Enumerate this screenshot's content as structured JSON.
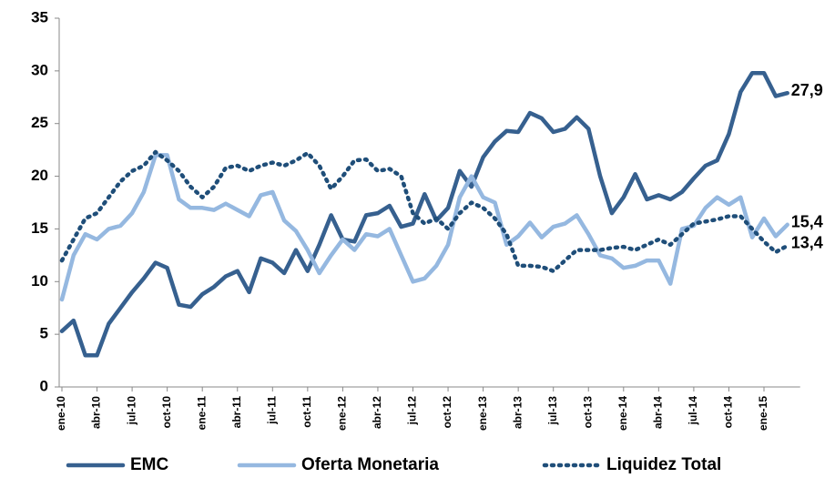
{
  "chart_data": {
    "type": "line",
    "categories": [
      "ene-10",
      null,
      null,
      "abr-10",
      null,
      null,
      "jul-10",
      null,
      null,
      "oct-10",
      null,
      null,
      "ene-11",
      null,
      null,
      "abr-11",
      null,
      null,
      "jul-11",
      null,
      null,
      "oct-11",
      null,
      null,
      "ene-12",
      null,
      null,
      "abr-12",
      null,
      null,
      "jul-12",
      null,
      null,
      "oct-12",
      null,
      null,
      "ene-13",
      null,
      null,
      "abr-13",
      null,
      null,
      "jul-13",
      null,
      null,
      "oct-13",
      null,
      null,
      "ene-14",
      null,
      null,
      "abr-14",
      null,
      null,
      "jul-14",
      null,
      null,
      "oct-14",
      null,
      null,
      "ene-15",
      null,
      null
    ],
    "series": [
      {
        "name": "EMC",
        "color": "#36608f",
        "dash": "solid",
        "values": [
          5.3,
          6.3,
          3.0,
          3.0,
          6.0,
          7.5,
          9.0,
          10.3,
          11.8,
          11.3,
          7.8,
          7.6,
          8.8,
          9.5,
          10.5,
          11.0,
          9.0,
          12.2,
          11.8,
          10.8,
          13.0,
          11.0,
          13.5,
          16.3,
          14.0,
          13.8,
          16.3,
          16.5,
          17.2,
          15.2,
          15.5,
          18.3,
          15.8,
          17.0,
          20.5,
          19.0,
          21.8,
          23.3,
          24.3,
          24.2,
          26.0,
          25.5,
          24.2,
          24.5,
          25.6,
          24.5,
          20.0,
          16.5,
          18.0,
          20.2,
          17.8,
          18.2,
          17.8,
          18.5,
          19.8,
          21.0,
          21.5,
          24.0,
          28.0,
          29.8,
          29.8,
          27.6,
          27.9
        ],
        "value_labels": [
          null,
          null,
          null,
          null,
          null,
          null,
          null,
          null,
          null,
          null,
          null,
          null,
          null,
          null,
          null,
          null,
          null,
          null,
          null,
          null,
          null,
          null,
          null,
          null,
          null,
          null,
          null,
          null,
          null,
          null,
          null,
          null,
          null,
          null,
          null,
          null,
          null,
          null,
          null,
          null,
          null,
          null,
          null,
          null,
          null,
          null,
          null,
          null,
          null,
          null,
          null,
          null,
          null,
          null,
          null,
          null,
          null,
          null,
          null,
          null,
          null,
          null,
          "27,9"
        ]
      },
      {
        "name": "Oferta Monetaria",
        "color": "#95b8e0",
        "dash": "solid",
        "values": [
          8.3,
          12.5,
          14.5,
          14.0,
          15.0,
          15.3,
          16.5,
          18.5,
          22.0,
          22.0,
          17.8,
          17.0,
          17.0,
          16.8,
          17.4,
          16.8,
          16.2,
          18.2,
          18.5,
          15.8,
          14.8,
          13.0,
          10.8,
          12.5,
          14.0,
          13.0,
          14.5,
          14.3,
          15.0,
          12.5,
          10.0,
          10.3,
          11.5,
          13.5,
          18.0,
          20.0,
          18.0,
          17.5,
          13.5,
          14.3,
          15.6,
          14.2,
          15.2,
          15.5,
          16.3,
          14.5,
          12.5,
          12.2,
          11.3,
          11.5,
          12.0,
          12.0,
          9.8,
          15.0,
          15.3,
          17.0,
          18.0,
          17.3,
          18.0,
          14.2,
          16.0,
          14.3,
          15.4
        ],
        "value_labels": [
          null,
          null,
          null,
          null,
          null,
          null,
          null,
          null,
          null,
          null,
          null,
          null,
          null,
          null,
          null,
          null,
          null,
          null,
          null,
          null,
          null,
          null,
          null,
          null,
          null,
          null,
          null,
          null,
          null,
          null,
          null,
          null,
          null,
          null,
          null,
          null,
          null,
          null,
          null,
          null,
          null,
          null,
          null,
          null,
          null,
          null,
          null,
          null,
          null,
          null,
          null,
          null,
          null,
          null,
          null,
          null,
          null,
          null,
          null,
          null,
          null,
          null,
          "15,4"
        ]
      },
      {
        "name": "Liquidez Total",
        "color": "#1f4e79",
        "dash": "dotted",
        "values": [
          12.0,
          14.0,
          16.0,
          16.5,
          18.0,
          19.5,
          20.5,
          21.0,
          22.3,
          21.5,
          20.5,
          19.0,
          18.0,
          19.0,
          20.8,
          21.0,
          20.5,
          21.0,
          21.3,
          21.0,
          21.5,
          22.2,
          21.0,
          18.8,
          20.0,
          21.5,
          21.6,
          20.5,
          20.7,
          20.0,
          16.5,
          15.5,
          16.0,
          15.0,
          16.5,
          17.5,
          17.0,
          16.0,
          14.5,
          11.5,
          11.5,
          11.4,
          11.0,
          12.0,
          13.0,
          13.0,
          13.0,
          13.2,
          13.3,
          13.0,
          13.5,
          14.0,
          13.5,
          14.5,
          15.5,
          15.7,
          15.9,
          16.2,
          16.2,
          15.0,
          13.8,
          12.8,
          13.4
        ],
        "value_labels": [
          null,
          null,
          null,
          null,
          null,
          null,
          null,
          null,
          null,
          null,
          null,
          null,
          null,
          null,
          null,
          null,
          null,
          null,
          null,
          null,
          null,
          null,
          null,
          null,
          null,
          null,
          null,
          null,
          null,
          null,
          null,
          null,
          null,
          null,
          null,
          null,
          null,
          null,
          null,
          null,
          null,
          null,
          null,
          null,
          null,
          null,
          null,
          null,
          null,
          null,
          null,
          null,
          null,
          null,
          null,
          null,
          null,
          null,
          null,
          null,
          null,
          null,
          "13,4"
        ]
      }
    ],
    "ylim": [
      0,
      35
    ],
    "yticks": [
      0,
      5,
      10,
      15,
      20,
      25,
      30,
      35
    ],
    "grid": false,
    "legend": "bottom"
  }
}
